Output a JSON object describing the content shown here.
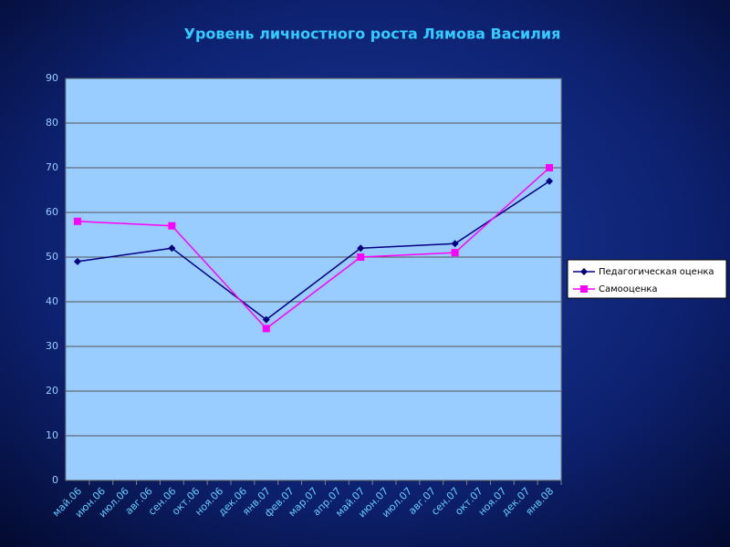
{
  "chart_data": {
    "type": "line",
    "title": "Уровень личностного роста Лямова Василия",
    "categories": [
      "май.06",
      "июн.06",
      "июл.06",
      "авг.06",
      "сен.06",
      "окт.06",
      "ноя.06",
      "дек.06",
      "янв.07",
      "фев.07",
      "мар.07",
      "апр.07",
      "май.07",
      "июн.07",
      "июл.07",
      "авг.07",
      "сен.07",
      "окт.07",
      "ноя.07",
      "дек.07",
      "янв.08"
    ],
    "series": [
      {
        "name": "Педагогическая оценка",
        "color": "#000080",
        "marker": "diamond",
        "values": [
          49,
          null,
          null,
          null,
          52,
          null,
          null,
          null,
          36,
          null,
          null,
          null,
          52,
          null,
          null,
          null,
          53,
          null,
          null,
          null,
          67
        ]
      },
      {
        "name": "Самооценка",
        "color": "#ff00ff",
        "marker": "square",
        "values": [
          58,
          null,
          null,
          null,
          57,
          null,
          null,
          null,
          34,
          null,
          null,
          null,
          50,
          null,
          null,
          null,
          51,
          null,
          null,
          null,
          70
        ]
      }
    ],
    "ylim": [
      0,
      90
    ],
    "yticks": [
      0,
      10,
      20,
      30,
      40,
      50,
      60,
      70,
      80,
      90
    ],
    "grid": true,
    "legend": "right",
    "connect_gaps": true
  }
}
